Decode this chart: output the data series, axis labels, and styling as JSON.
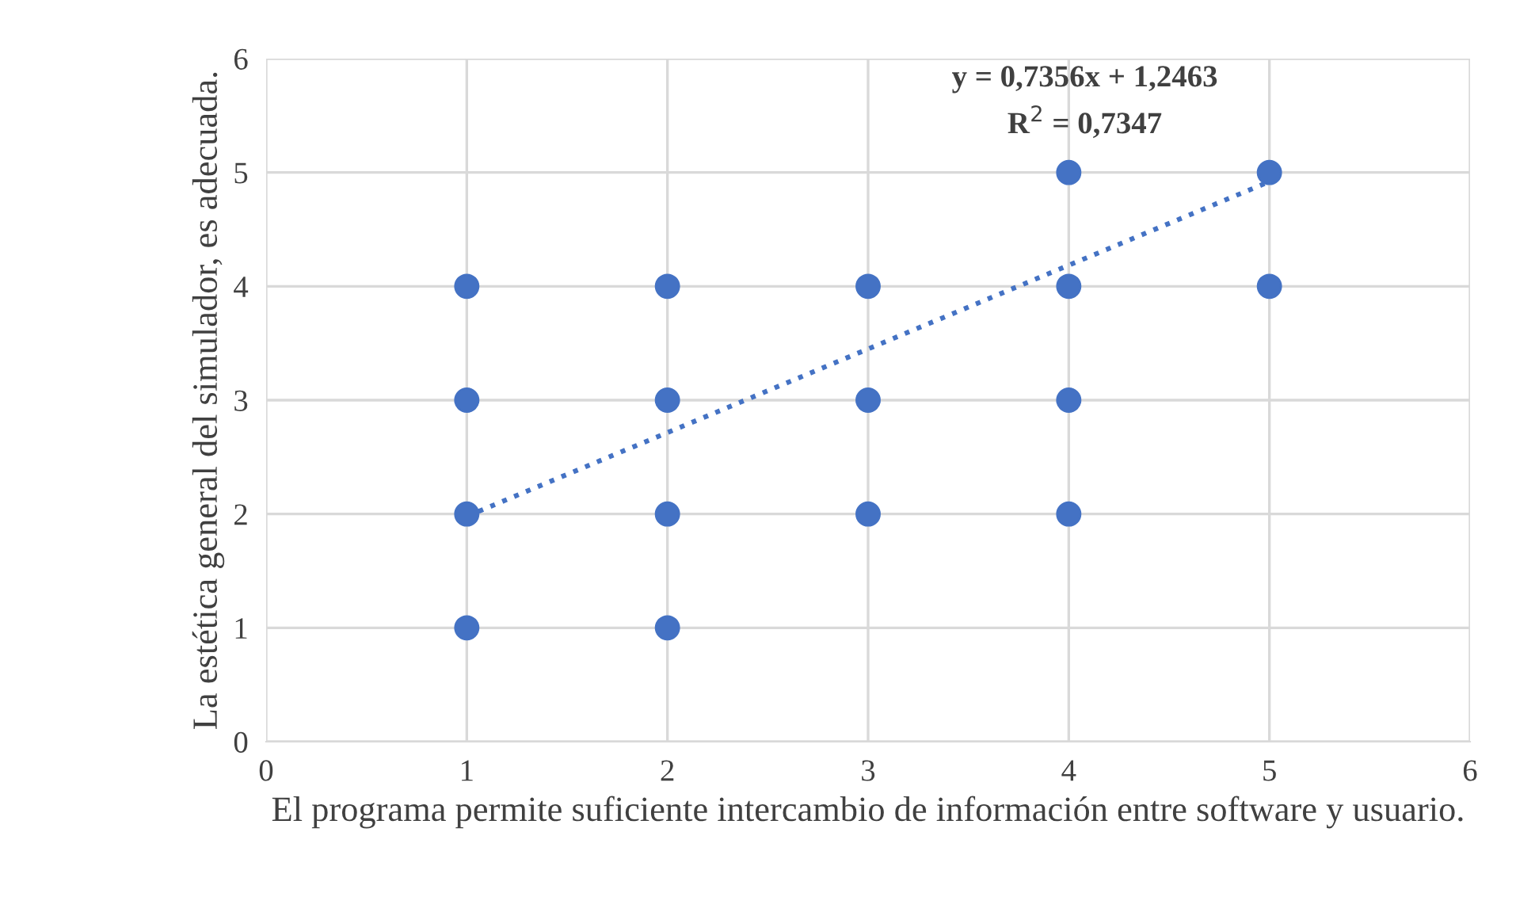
{
  "chart_data": {
    "type": "scatter",
    "xlabel": "El programa permite suficiente intercambio de información entre software y usuario.",
    "ylabel": "La estética general del simulador, es adecuada.",
    "xlim": [
      0,
      6
    ],
    "ylim": [
      0,
      6
    ],
    "xticks": [
      0,
      1,
      2,
      3,
      4,
      5,
      6
    ],
    "yticks": [
      0,
      1,
      2,
      3,
      4,
      5,
      6
    ],
    "grid": true,
    "marker": "circle",
    "annotations": [
      "y = 0,7356x + 1,2463",
      "R$^{2}$ = 0,7347"
    ],
    "series": [
      {
        "color": "#4472c4",
        "x": [
          1,
          1,
          1,
          1,
          2,
          2,
          2,
          2,
          3,
          3,
          3,
          4,
          4,
          4,
          4,
          5,
          5
        ],
        "values": [
          1,
          2,
          3,
          4,
          1,
          2,
          3,
          4,
          2,
          3,
          4,
          2,
          3,
          4,
          5,
          4,
          5
        ]
      },
      {
        "type": "line",
        "color": "#4472c4",
        "line_style": "dotted",
        "marker": "none",
        "x": [
          1,
          5
        ],
        "values": [
          1.98,
          4.92
        ]
      }
    ]
  }
}
